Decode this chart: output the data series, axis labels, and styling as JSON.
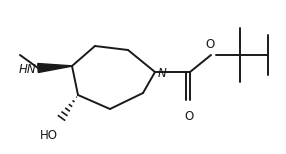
{
  "bg_color": "#ffffff",
  "line_color": "#1a1a1a",
  "font_color": "#1a1a1a",
  "line_width": 1.4,
  "font_size": 8.5,
  "fig_width": 2.86,
  "fig_height": 1.54,
  "dpi": 100,
  "N_label": "N",
  "NH_label": "HN",
  "OH_label": "HO",
  "O_double_label": "O",
  "O_single_label": "O"
}
